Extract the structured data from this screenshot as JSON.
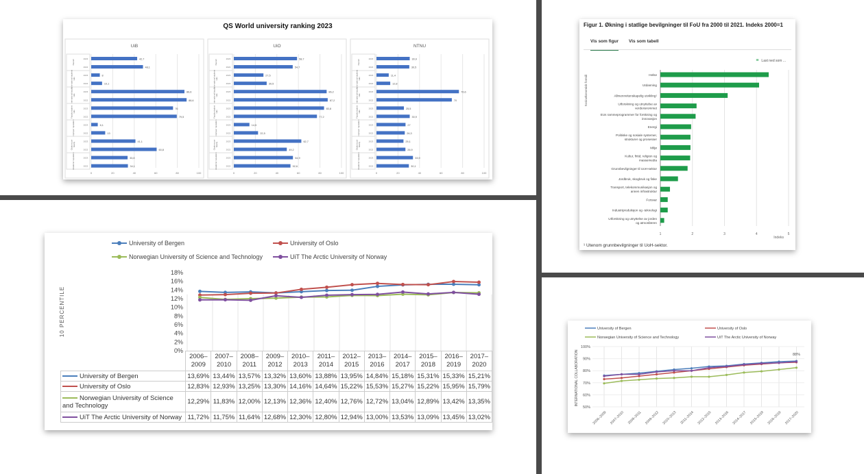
{
  "colors": {
    "qs_bar": "#4472c4",
    "green": "#1e9c4a",
    "bergen": "#4a7ebb",
    "oslo": "#c0504d",
    "ntnu": "#9bbb59",
    "uit": "#7f4f9f"
  },
  "qs": {
    "title": "QS World university ranking 2023",
    "years": [
      "2023",
      "2022"
    ],
    "categories": [
      "Overall",
      "International students ratio",
      "International faculty ratio",
      "Faculty student ratio",
      "Employer reputation",
      "Citations per faculty",
      "Academic reputation"
    ],
    "xticks": [
      "0",
      "20",
      "40",
      "60",
      "80",
      "100"
    ],
    "panels": [
      {
        "name": "UiB",
        "values": [
          42.7,
          48.1,
          8,
          10.1,
          86.6,
          88.6,
          76,
          79.5,
          6.1,
          13,
          41.1,
          60.8,
          33.8,
          34.1
        ]
      },
      {
        "name": "UiO",
        "values": [
          58.7,
          54.7,
          27.5,
          30.5,
          86.2,
          87.2,
          83.8,
          77.2,
          14.5,
          22.5,
          62.7,
          49.2,
          54.9,
          52.6
        ]
      },
      {
        "name": "NTNU",
        "values": [
          30.9,
          30.5,
          11.4,
          12.8,
          76.6,
          70,
          25.5,
          30.9,
          27,
          26.3,
          25.1,
          26.9,
          33.9,
          30.1
        ]
      }
    ]
  },
  "fou": {
    "title": "Figur 1. Økning i statlige bevilgninger til FoU fra 2000 til 2021. Indeks 2000=1",
    "tabs": [
      "Vis som figur",
      "Vis som tabell"
    ],
    "download": "Last ned som ...",
    "ylabel": "Sosioøkonomisk formål",
    "xlabel": "Indeks",
    "footnote": "¹ Utenom grunnbevilgninger til UoH-sektor.",
    "chart_data": {
      "type": "bar",
      "orientation": "horizontal",
      "xlim": [
        1,
        5
      ],
      "xticks": [
        "1",
        "2",
        "3",
        "4",
        "5"
      ],
      "categories": [
        "Helse",
        "Utdanning",
        "Allmennvitenskapelig utvikling¹",
        "Utforskning og utnyttelse av verdensrommet",
        "EUs rammeprogrammer for forskning og innovasjon",
        "Energi",
        "Politiske og sosiale systemer, strukturer og prosesser",
        "Miljø",
        "Kultur, fritid, religion og massemedia",
        "Grunnbevilgninger til UoH-sektor",
        "Jordbruk, skogbruk og fiske",
        "Transport, telekommunikasjon og annen infrastruktur",
        "Forsvar",
        "Industriproduksjon og -teknologi",
        "Utforskning og utnyttelse av jorden og atmosfæren"
      ],
      "values": [
        4.38,
        4.08,
        3.1,
        2.13,
        2.1,
        1.96,
        1.94,
        1.94,
        1.93,
        1.85,
        1.55,
        1.3,
        1.23,
        1.23,
        1.12
      ]
    }
  },
  "pct": {
    "ylabel": "10 PERCENTILE",
    "yticks": [
      "18%",
      "16%",
      "14%",
      "12%",
      "10%",
      "8%",
      "6%",
      "4%",
      "2%",
      "0%"
    ],
    "chart_data": {
      "type": "line",
      "ylim": [
        0,
        18
      ],
      "categories": [
        "2006–2009",
        "2007–2010",
        "2008–2011",
        "2009–2012",
        "2010–2013",
        "2011–2014",
        "2012–2015",
        "2013–2016",
        "2014–2017",
        "2015–2018",
        "2016–2019",
        "2017–2020"
      ],
      "series": [
        {
          "name": "University of Bergen",
          "key": "bergen",
          "values": [
            13.69,
            13.44,
            13.57,
            13.32,
            13.6,
            13.88,
            13.95,
            14.84,
            15.18,
            15.31,
            15.33,
            15.21
          ],
          "labels": [
            "13,69%",
            "13,44%",
            "13,57%",
            "13,32%",
            "13,60%",
            "13,88%",
            "13,95%",
            "14,84%",
            "15,18%",
            "15,31%",
            "15,33%",
            "15,21%"
          ]
        },
        {
          "name": "University of Oslo",
          "key": "oslo",
          "values": [
            12.83,
            12.93,
            13.25,
            13.3,
            14.16,
            14.64,
            15.22,
            15.53,
            15.27,
            15.22,
            15.95,
            15.79
          ],
          "labels": [
            "12,83%",
            "12,93%",
            "13,25%",
            "13,30%",
            "14,16%",
            "14,64%",
            "15,22%",
            "15,53%",
            "15,27%",
            "15,22%",
            "15,95%",
            "15,79%"
          ]
        },
        {
          "name": "Norwegian University of Science and Technology",
          "key": "ntnu",
          "values": [
            12.29,
            11.83,
            12.0,
            12.13,
            12.36,
            12.4,
            12.76,
            12.72,
            13.04,
            12.89,
            13.42,
            13.35
          ],
          "labels": [
            "12,29%",
            "11,83%",
            "12,00%",
            "12,13%",
            "12,36%",
            "12,40%",
            "12,76%",
            "12,72%",
            "13,04%",
            "12,89%",
            "13,42%",
            "13,35%"
          ]
        },
        {
          "name": "UiT The Arctic University of Norway",
          "key": "uit",
          "values": [
            11.72,
            11.75,
            11.64,
            12.68,
            12.3,
            12.8,
            12.94,
            13.0,
            13.53,
            13.09,
            13.45,
            13.02
          ],
          "labels": [
            "11,72%",
            "11,75%",
            "11,64%",
            "12,68%",
            "12,30%",
            "12,80%",
            "12,94%",
            "13,00%",
            "13,53%",
            "13,09%",
            "13,45%",
            "13,02%"
          ]
        }
      ]
    }
  },
  "intl": {
    "ylabel": "INTERNATIONAL COLLABORATION",
    "yticks": [
      "100%",
      "90%",
      "80%",
      "70%",
      "60%",
      "50%"
    ],
    "annotation": "88%",
    "chart_data": {
      "type": "line",
      "ylim": [
        50,
        100
      ],
      "categories": [
        "2006–2009",
        "2007–2010",
        "2008–2011",
        "2009–2012",
        "2010–2013",
        "2011–2014",
        "2012–2015",
        "2013–2016",
        "2014–2017",
        "2015–2018",
        "2016–2019",
        "2017–2020"
      ],
      "series": [
        {
          "name": "University of Bergen",
          "key": "bergen",
          "values": [
            76,
            77,
            78,
            79.5,
            81,
            82,
            83.5,
            84,
            85.5,
            86.5,
            87.5,
            88
          ]
        },
        {
          "name": "University of Oslo",
          "key": "oslo",
          "values": [
            73,
            74,
            75.5,
            77,
            78.5,
            80,
            81.5,
            83,
            84.5,
            85.5,
            86.5,
            87
          ]
        },
        {
          "name": "Norwegian University of Science and Technology",
          "key": "ntnu",
          "values": [
            69.5,
            71.5,
            72.5,
            73.5,
            74,
            75,
            75,
            76.5,
            78.5,
            79.5,
            81,
            82.5
          ]
        },
        {
          "name": "UiT The Arctic University of Norway",
          "key": "uit",
          "values": [
            75.5,
            77,
            77,
            79,
            80,
            80,
            82.5,
            83.5,
            85,
            86,
            86.5,
            87.5
          ]
        }
      ]
    }
  }
}
